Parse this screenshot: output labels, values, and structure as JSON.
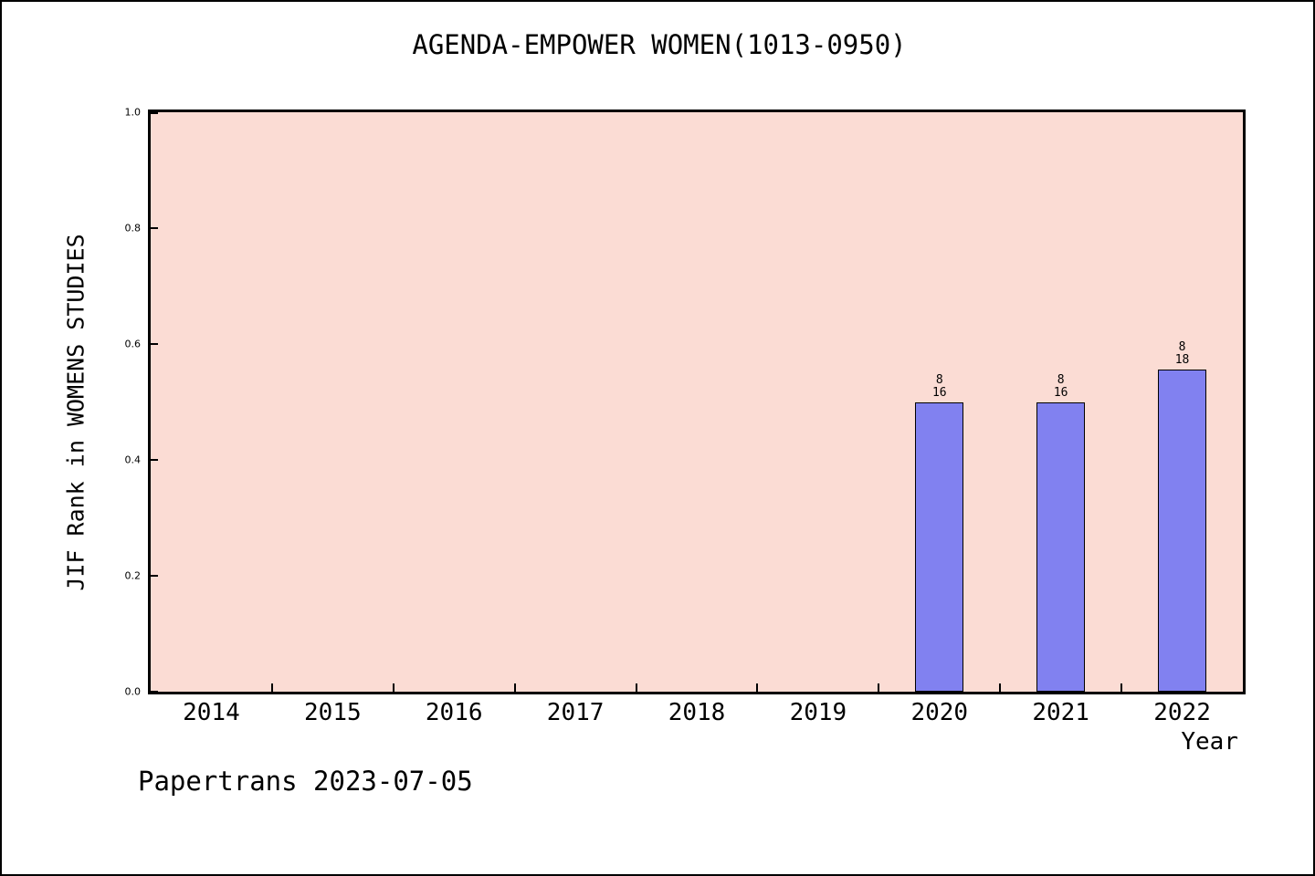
{
  "page": {
    "footer": "Papertrans 2023-07-05"
  },
  "colors": {
    "page_background": "#ffffff",
    "plot_background": "#fbdcd4",
    "bar_fill": "#8181f0",
    "bar_edge": "#000000",
    "axis": "#000000",
    "text": "#000000"
  },
  "chart_data": {
    "type": "bar",
    "title": "AGENDA-EMPOWER WOMEN(1013-0950)",
    "xlabel": "Year",
    "ylabel": "JIF Rank in WOMENS STUDIES",
    "categories": [
      "2014",
      "2015",
      "2016",
      "2017",
      "2018",
      "2019",
      "2020",
      "2021",
      "2022"
    ],
    "values": [
      null,
      null,
      null,
      null,
      null,
      null,
      0.5,
      0.5,
      0.556
    ],
    "bar_labels": [
      null,
      null,
      null,
      null,
      null,
      null,
      "8\n16",
      "8\n16",
      "8\n18"
    ],
    "bars_detail": [
      {
        "category": "2020",
        "rank": 8,
        "total": 16
      },
      {
        "category": "2021",
        "rank": 8,
        "total": 16
      },
      {
        "category": "2022",
        "rank": 8,
        "total": 18
      }
    ],
    "ytick_values": [
      0.0,
      0.2,
      0.4,
      0.6,
      0.8,
      1.0
    ],
    "ytick_labels": [
      "0.0",
      "0.2",
      "0.4",
      "0.6",
      "0.8",
      "1.0"
    ],
    "ylim": [
      0,
      1
    ],
    "grid": false,
    "legend": null
  }
}
